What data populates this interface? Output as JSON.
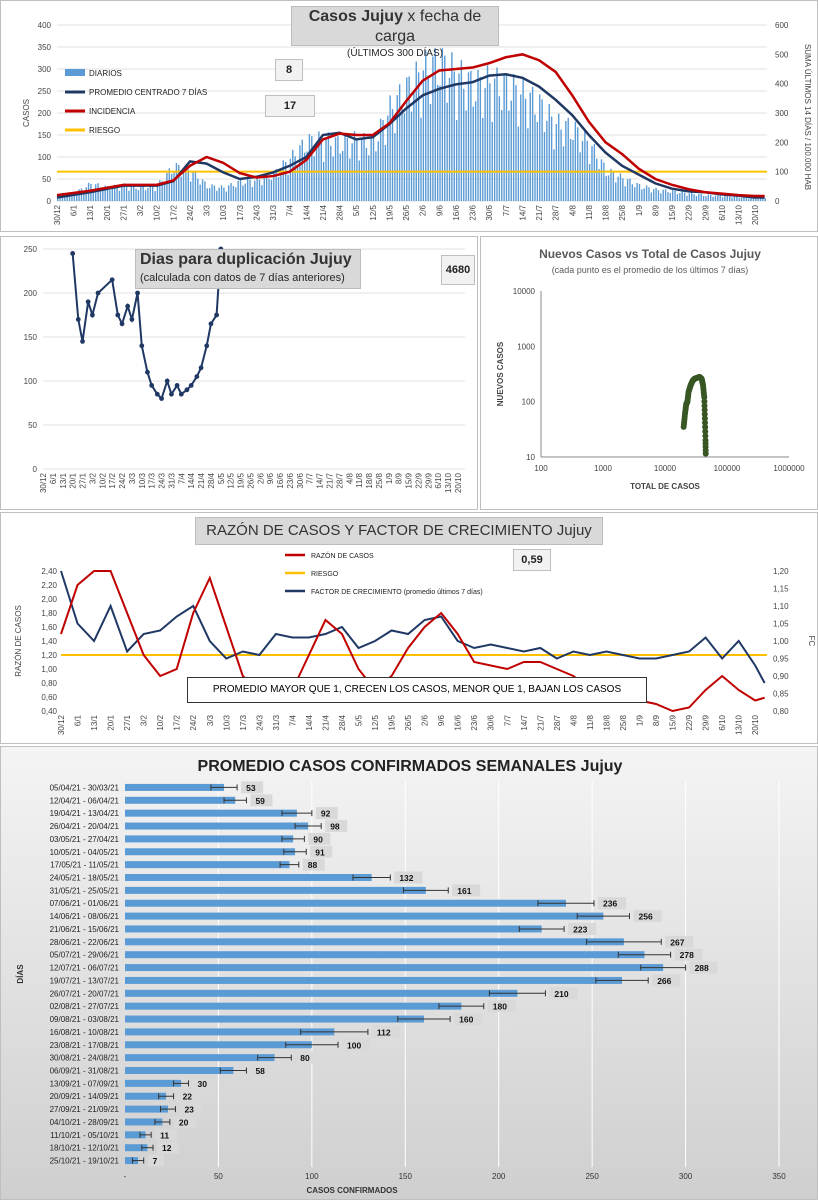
{
  "colors": {
    "daily": "#5b9bd5",
    "avg7": "#1f3864",
    "incidence": "#c00000",
    "risk": "#ffc000",
    "ratio": "#c00000",
    "growth": "#1f3864",
    "scatter": "#375623",
    "weekly_bar": "#5b9bd5"
  },
  "panel1": {
    "title_a": "Casos Jujuy",
    "title_b": " x fecha de carga",
    "subtitle": "(ÚLTIMOS 300 DÍAS)",
    "ylabel_left": "CASOS",
    "ylabel_right": "SUMA  ÚLTIMOS 14 DÍAS / 100.000 HAB",
    "box1": "8",
    "box2": "17",
    "legend": [
      "DIARIOS",
      "PROMEDIO CENTRADO 7 DÍAS",
      "INCIDENCIA",
      "RIESGO"
    ],
    "y_left_ticks": [
      "0",
      "50",
      "100",
      "150",
      "200",
      "250",
      "300",
      "350",
      "400"
    ],
    "y_right_ticks": [
      "0",
      "100",
      "200",
      "300",
      "400",
      "500",
      "600"
    ],
    "x_ticks": [
      "30/12",
      "6/1",
      "13/1",
      "20/1",
      "27/1",
      "3/2",
      "10/2",
      "17/2",
      "24/2",
      "3/3",
      "10/3",
      "17/3",
      "24/3",
      "31/3",
      "7/4",
      "14/4",
      "21/4",
      "28/4",
      "5/5",
      "12/5",
      "19/5",
      "26/5",
      "2/6",
      "9/6",
      "16/6",
      "23/6",
      "30/6",
      "7/7",
      "14/7",
      "21/7",
      "28/7",
      "4/8",
      "11/8",
      "18/8",
      "25/8",
      "1/9",
      "8/9",
      "15/9",
      "22/9",
      "29/9",
      "6/10",
      "13/10",
      "20/10"
    ]
  },
  "panel2": {
    "title": "Dias para duplicación Jujuy",
    "subtitle": "(calculada con datos de 7 días anteriores)",
    "box": "4680",
    "y_ticks": [
      "0",
      "50",
      "100",
      "150",
      "200",
      "250"
    ],
    "x_ticks": [
      "30/12",
      "6/1",
      "13/1",
      "20/1",
      "27/1",
      "3/2",
      "10/2",
      "17/2",
      "24/2",
      "3/3",
      "10/3",
      "17/3",
      "24/3",
      "31/3",
      "7/4",
      "14/4",
      "21/4",
      "28/4",
      "5/5",
      "12/5",
      "19/5",
      "26/5",
      "2/6",
      "9/6",
      "16/6",
      "23/6",
      "30/6",
      "7/7",
      "14/7",
      "21/7",
      "28/7",
      "4/8",
      "11/8",
      "18/8",
      "25/8",
      "1/9",
      "8/9",
      "15/9",
      "22/9",
      "29/9",
      "6/10",
      "13/10",
      "20/10"
    ]
  },
  "panel3": {
    "title": "Nuevos Casos vs Total de Casos Jujuy",
    "subtitle": "(cada punto es el promedio de los últimos 7 días)",
    "ylabel": "NUEVOS CASOS",
    "xlabel": "TOTAL DE CASOS",
    "y_ticks": [
      "10",
      "100",
      "1000",
      "10000"
    ],
    "x_ticks": [
      "100",
      "1000",
      "10000",
      "100000",
      "1000000"
    ]
  },
  "panel4": {
    "title": "RAZÓN DE CASOS Y FACTOR DE CRECIMIENTO Jujuy",
    "legend": [
      "RAZÓN DE CASOS",
      "RIESGO",
      "FACTOR DE CRECIMIENTO (promedio últimos 7 días)"
    ],
    "box": "0,59",
    "ylabel_left": "RAZÓN DE CASOS",
    "ylabel_right": "FC",
    "note": "PROMEDIO MAYOR QUE 1, CRECEN LOS CASOS, MENOR QUE 1, BAJAN LOS CASOS",
    "y_left_ticks": [
      "0,40",
      "0,60",
      "0,80",
      "1,00",
      "1,20",
      "1,40",
      "1,60",
      "1,80",
      "2,00",
      "2,20",
      "2,40"
    ],
    "y_right_ticks": [
      "0,80",
      "0,85",
      "0,90",
      "0,95",
      "1,00",
      "1,05",
      "1,10",
      "1,15",
      "1,20"
    ],
    "x_ticks": [
      "30/12",
      "6/1",
      "13/1",
      "20/1",
      "27/1",
      "3/2",
      "10/2",
      "17/2",
      "24/2",
      "3/3",
      "10/3",
      "17/3",
      "24/3",
      "31/3",
      "7/4",
      "14/4",
      "21/4",
      "28/4",
      "5/5",
      "12/5",
      "19/5",
      "26/5",
      "2/6",
      "9/6",
      "16/6",
      "23/6",
      "30/6",
      "7/7",
      "14/7",
      "21/7",
      "28/7",
      "4/8",
      "11/8",
      "18/8",
      "25/8",
      "1/9",
      "8/9",
      "15/9",
      "22/9",
      "29/9",
      "6/10",
      "13/10",
      "20/10"
    ]
  },
  "panel5": {
    "title": "PROMEDIO CASOS CONFIRMADOS SEMANALES Jujuy",
    "ylabel": "DÍAS",
    "xlabel": "CASOS CONFIRMADOS",
    "x_ticks": [
      "-",
      "50",
      "100",
      "150",
      "200",
      "250",
      "300",
      "350"
    ]
  },
  "chart_data": [
    {
      "type": "bar",
      "title": "Casos Jujuy x fecha de carga",
      "subtitle": "(ÚLTIMOS 300 DÍAS)",
      "ylabel": "CASOS",
      "ylabel_secondary": "SUMA  ÚLTIMOS 14 DÍAS / 100.000 HAB",
      "ylim": [
        0,
        400
      ],
      "ylim_secondary": [
        0,
        600
      ],
      "x_start": "30/12",
      "x_end": "24/10",
      "legend_position": "top-left",
      "series": [
        {
          "name": "DIARIOS",
          "type": "bar",
          "approx_weekly_peaks": [
            15,
            20,
            45,
            35,
            40,
            35,
            40,
            90,
            80,
            40,
            35,
            50,
            55,
            70,
            110,
            155,
            160,
            150,
            160,
            150,
            240,
            290,
            340,
            360,
            330,
            300,
            310,
            300,
            280,
            250,
            200,
            190,
            150,
            80,
            60,
            40,
            30,
            25,
            20,
            15,
            15,
            10,
            8
          ]
        },
        {
          "name": "PROMEDIO CENTRADO 7 DÍAS",
          "type": "line",
          "x": [
            "30/12",
            "13/1",
            "27/1",
            "10/2",
            "17/2",
            "24/2",
            "3/3",
            "10/3",
            "17/3",
            "24/3",
            "31/3",
            "7/4",
            "14/4",
            "21/4",
            "28/4",
            "5/5",
            "12/5",
            "19/5",
            "26/5",
            "2/6",
            "9/6",
            "16/6",
            "23/6",
            "30/6",
            "7/7",
            "14/7",
            "21/7",
            "28/7",
            "4/8",
            "11/8",
            "18/8",
            "25/8",
            "1/9",
            "8/9",
            "15/9",
            "22/9",
            "29/9",
            "6/10",
            "13/10",
            "20/10",
            "24/10"
          ],
          "values": [
            8,
            20,
            35,
            35,
            45,
            90,
            85,
            65,
            50,
            55,
            65,
            80,
            100,
            150,
            155,
            140,
            145,
            175,
            210,
            240,
            255,
            265,
            270,
            285,
            288,
            280,
            260,
            230,
            195,
            150,
            110,
            80,
            60,
            40,
            28,
            22,
            20,
            15,
            12,
            8,
            8
          ]
        },
        {
          "name": "INCIDENCIA",
          "type": "line",
          "axis": "secondary",
          "x": [
            "30/12",
            "13/1",
            "27/1",
            "10/2",
            "17/2",
            "24/2",
            "3/3",
            "10/3",
            "17/3",
            "24/3",
            "31/3",
            "7/4",
            "14/4",
            "21/4",
            "28/4",
            "5/5",
            "12/5",
            "19/5",
            "26/5",
            "2/6",
            "9/6",
            "16/6",
            "23/6",
            "30/6",
            "7/7",
            "14/7",
            "21/7",
            "28/7",
            "4/8",
            "11/8",
            "18/8",
            "25/8",
            "1/9",
            "8/9",
            "15/9",
            "22/9",
            "29/9",
            "6/10",
            "13/10",
            "20/10",
            "24/10"
          ],
          "values": [
            20,
            35,
            55,
            55,
            70,
            120,
            150,
            130,
            95,
            80,
            85,
            100,
            140,
            210,
            230,
            225,
            225,
            265,
            340,
            410,
            445,
            450,
            455,
            470,
            490,
            500,
            480,
            440,
            360,
            270,
            200,
            160,
            110,
            75,
            55,
            40,
            30,
            25,
            20,
            17,
            17
          ]
        },
        {
          "name": "RIESGO",
          "type": "line",
          "constant": 100
        }
      ]
    },
    {
      "type": "line",
      "title": "Dias para duplicación Jujuy",
      "subtitle": "(calculada con datos de 7 días anteriores)",
      "ylim": [
        0,
        250
      ],
      "x": [
        "20/1",
        "24/1",
        "27/1",
        "31/1",
        "3/2",
        "7/2",
        "17/2",
        "21/2",
        "24/2",
        "28/2",
        "3/3",
        "7/3",
        "10/3",
        "14/3",
        "17/3",
        "21/3",
        "24/3",
        "28/3",
        "31/3",
        "4/4",
        "7/4",
        "11/4",
        "14/4",
        "18/4",
        "21/4",
        "25/4",
        "28/4",
        "2/5",
        "5/5"
      ],
      "values": [
        245,
        170,
        145,
        190,
        175,
        200,
        215,
        175,
        165,
        185,
        170,
        200,
        140,
        110,
        95,
        85,
        80,
        100,
        85,
        95,
        85,
        90,
        95,
        105,
        115,
        140,
        165,
        175,
        250
      ]
    },
    {
      "type": "scatter",
      "title": "Nuevos Casos vs Total de Casos Jujuy",
      "xlabel": "TOTAL DE CASOS",
      "ylabel": "NUEVOS CASOS",
      "x_scale": "log",
      "y_scale": "log",
      "xlim": [
        100,
        1000000
      ],
      "ylim": [
        10,
        10000
      ],
      "x": [
        20000,
        21000,
        22000,
        23000,
        24000,
        26000,
        28000,
        30000,
        33000,
        36000,
        39000,
        41000,
        43000,
        44000,
        45000,
        45500
      ],
      "y": [
        35,
        60,
        90,
        100,
        150,
        200,
        240,
        260,
        270,
        280,
        260,
        200,
        120,
        50,
        20,
        10
      ]
    },
    {
      "type": "line",
      "title": "RAZÓN DE CASOS Y FACTOR DE CRECIMIENTO Jujuy",
      "ylabel": "RAZÓN DE CASOS",
      "ylabel_secondary": "FC",
      "ylim": [
        0.4,
        2.4
      ],
      "ylim_secondary": [
        0.8,
        1.2
      ],
      "series": [
        {
          "name": "RAZÓN DE CASOS",
          "x": [
            "30/12",
            "6/1",
            "13/1",
            "20/1",
            "27/1",
            "3/2",
            "10/2",
            "17/2",
            "24/2",
            "3/3",
            "10/3",
            "17/3",
            "24/3",
            "31/3",
            "7/4",
            "14/4",
            "21/4",
            "28/4",
            "5/5",
            "12/5",
            "19/5",
            "26/5",
            "2/6",
            "9/6",
            "16/6",
            "23/6",
            "30/6",
            "7/7",
            "14/7",
            "21/7",
            "28/7",
            "4/8",
            "11/8",
            "18/8",
            "25/8",
            "1/9",
            "8/9",
            "15/9",
            "22/9",
            "29/9",
            "6/10",
            "13/10",
            "20/10",
            "24/10"
          ],
          "values": [
            1.5,
            2.2,
            2.4,
            2.4,
            1.8,
            1.2,
            0.9,
            1.0,
            1.8,
            2.3,
            1.6,
            0.9,
            0.7,
            0.6,
            0.7,
            1.2,
            1.7,
            1.5,
            1.0,
            0.7,
            0.9,
            1.3,
            1.6,
            1.8,
            1.5,
            1.1,
            1.05,
            1.0,
            1.1,
            1.1,
            1.0,
            0.9,
            0.7,
            0.6,
            0.6,
            0.55,
            0.5,
            0.4,
            0.45,
            0.7,
            0.9,
            0.7,
            0.55,
            0.59
          ]
        },
        {
          "name": "RIESGO",
          "constant": 1.2
        },
        {
          "name": "FACTOR DE CRECIMIENTO (promedio últimos 7 días)",
          "axis": "secondary",
          "x": [
            "30/12",
            "6/1",
            "13/1",
            "20/1",
            "27/1",
            "3/2",
            "10/2",
            "17/2",
            "24/2",
            "3/3",
            "10/3",
            "17/3",
            "24/3",
            "31/3",
            "7/4",
            "14/4",
            "21/4",
            "28/4",
            "5/5",
            "12/5",
            "19/5",
            "26/5",
            "2/6",
            "9/6",
            "16/6",
            "23/6",
            "30/6",
            "7/7",
            "14/7",
            "21/7",
            "28/7",
            "4/8",
            "11/8",
            "18/8",
            "25/8",
            "1/9",
            "8/9",
            "15/9",
            "22/9",
            "29/9",
            "6/10",
            "13/10",
            "20/10",
            "24/10"
          ],
          "values": [
            1.2,
            1.05,
            1.0,
            1.1,
            0.97,
            1.02,
            1.03,
            1.07,
            1.1,
            1.0,
            0.95,
            0.97,
            0.96,
            1.02,
            1.01,
            1.01,
            1.02,
            1.04,
            0.98,
            1.0,
            1.03,
            1.02,
            1.06,
            1.07,
            1.0,
            0.98,
            0.99,
            0.98,
            0.97,
            0.98,
            0.95,
            0.97,
            0.96,
            0.97,
            0.96,
            0.95,
            0.95,
            0.96,
            0.97,
            1.01,
            0.95,
            1.0,
            0.93,
            0.88
          ]
        }
      ]
    },
    {
      "type": "bar",
      "orientation": "horizontal",
      "title": "PROMEDIO CASOS CONFIRMADOS SEMANALES Jujuy",
      "xlabel": "CASOS CONFIRMADOS",
      "ylabel": "DÍAS",
      "xlim": [
        0,
        350
      ],
      "categories": [
        "05/04/21 - 30/03/21",
        "12/04/21 - 06/04/21",
        "19/04/21 - 13/04/21",
        "26/04/21 - 20/04/21",
        "03/05/21 - 27/04/21",
        "10/05/21 - 04/05/21",
        "17/05/21 - 11/05/21",
        "24/05/21 - 18/05/21",
        "31/05/21 - 25/05/21",
        "07/06/21 - 01/06/21",
        "14/06/21 - 08/06/21",
        "21/06/21 - 15/06/21",
        "28/06/21 - 22/06/21",
        "05/07/21 - 29/06/21",
        "12/07/21 - 06/07/21",
        "19/07/21 - 13/07/21",
        "26/07/21 - 20/07/21",
        "02/08/21 - 27/07/21",
        "09/08/21 - 03/08/21",
        "16/08/21 - 10/08/21",
        "23/08/21 - 17/08/21",
        "30/08/21 - 24/08/21",
        "06/09/21 - 31/08/21",
        "13/09/21 - 07/09/21",
        "20/09/21 - 14/09/21",
        "27/09/21 - 21/09/21",
        "04/10/21 - 28/09/21",
        "11/10/21 - 05/10/21",
        "18/10/21 - 12/10/21",
        "25/10/21 - 19/10/21"
      ],
      "values": [
        53,
        59,
        92,
        98,
        90,
        91,
        88,
        132,
        161,
        236,
        256,
        223,
        267,
        278,
        288,
        266,
        210,
        180,
        160,
        112,
        100,
        80,
        58,
        30,
        22,
        23,
        20,
        11,
        12,
        7
      ],
      "error": [
        7,
        6,
        8,
        7,
        6,
        6,
        5,
        10,
        12,
        15,
        14,
        12,
        20,
        14,
        12,
        14,
        15,
        12,
        14,
        18,
        14,
        9,
        7,
        4,
        4,
        4,
        4,
        3,
        3,
        3
      ]
    }
  ]
}
